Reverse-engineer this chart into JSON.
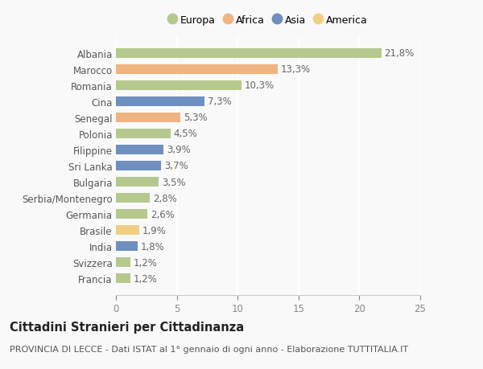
{
  "categories": [
    "Albania",
    "Marocco",
    "Romania",
    "Cina",
    "Senegal",
    "Polonia",
    "Filippine",
    "Sri Lanka",
    "Bulgaria",
    "Serbia/Montenegro",
    "Germania",
    "Brasile",
    "India",
    "Svizzera",
    "Francia"
  ],
  "values": [
    21.8,
    13.3,
    10.3,
    7.3,
    5.3,
    4.5,
    3.9,
    3.7,
    3.5,
    2.8,
    2.6,
    1.9,
    1.8,
    1.2,
    1.2
  ],
  "labels": [
    "21,8%",
    "13,3%",
    "10,3%",
    "7,3%",
    "5,3%",
    "4,5%",
    "3,9%",
    "3,7%",
    "3,5%",
    "2,8%",
    "2,6%",
    "1,9%",
    "1,8%",
    "1,2%",
    "1,2%"
  ],
  "continents": [
    "Europa",
    "Africa",
    "Europa",
    "Asia",
    "Africa",
    "Europa",
    "Asia",
    "Asia",
    "Europa",
    "Europa",
    "Europa",
    "America",
    "Asia",
    "Europa",
    "Europa"
  ],
  "colors": {
    "Europa": "#b5c98e",
    "Africa": "#f0b482",
    "Asia": "#6e8fbf",
    "America": "#f0d080"
  },
  "legend_order": [
    "Europa",
    "Africa",
    "Asia",
    "America"
  ],
  "xlim": [
    0,
    25
  ],
  "xticks": [
    0,
    5,
    10,
    15,
    20,
    25
  ],
  "title": "Cittadini Stranieri per Cittadinanza",
  "subtitle": "PROVINCIA DI LECCE - Dati ISTAT al 1° gennaio di ogni anno - Elaborazione TUTTITALIA.IT",
  "background_color": "#f9f9f9",
  "bar_height": 0.6,
  "label_fontsize": 8.5,
  "tick_fontsize": 8.5,
  "title_fontsize": 10.5,
  "subtitle_fontsize": 8.0
}
